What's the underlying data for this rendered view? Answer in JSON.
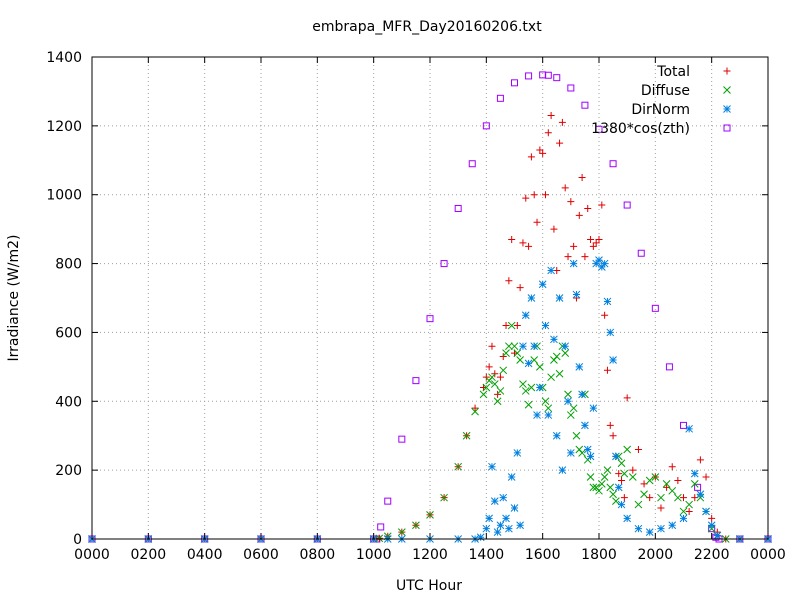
{
  "chart_data": {
    "type": "scatter",
    "title": "embrapa_MFR_Day20160206.txt",
    "xlabel": "UTC Hour",
    "ylabel": "Irradiance (W/m2)",
    "xlim": [
      0,
      24
    ],
    "ylim": [
      0,
      1400
    ],
    "grid": true,
    "legend_position": "top-right",
    "x_ticks": [
      {
        "value": 0,
        "label": "0000"
      },
      {
        "value": 2,
        "label": "0200"
      },
      {
        "value": 4,
        "label": "0400"
      },
      {
        "value": 6,
        "label": "0600"
      },
      {
        "value": 8,
        "label": "0800"
      },
      {
        "value": 10,
        "label": "1000"
      },
      {
        "value": 12,
        "label": "1200"
      },
      {
        "value": 14,
        "label": "1400"
      },
      {
        "value": 16,
        "label": "1600"
      },
      {
        "value": 18,
        "label": "1800"
      },
      {
        "value": 20,
        "label": "2000"
      },
      {
        "value": 22,
        "label": "2200"
      },
      {
        "value": 24,
        "label": "0000"
      }
    ],
    "y_ticks": [
      0,
      200,
      400,
      600,
      800,
      1000,
      1200,
      1400
    ],
    "series": [
      {
        "name": "Total",
        "marker": "plus",
        "color": "#e00000",
        "x": [
          0,
          2,
          4,
          6,
          8,
          10,
          10.2,
          10.5,
          11,
          11.5,
          12,
          12.5,
          13,
          13.3,
          13.6,
          13.9,
          14.0,
          14.1,
          14.2,
          14.3,
          14.4,
          14.5,
          14.6,
          14.7,
          14.8,
          14.9,
          15.0,
          15.1,
          15.2,
          15.3,
          15.4,
          15.5,
          15.6,
          15.7,
          15.8,
          15.9,
          16.0,
          16.1,
          16.2,
          16.3,
          16.4,
          16.5,
          16.6,
          16.7,
          16.8,
          16.9,
          17.0,
          17.1,
          17.2,
          17.3,
          17.4,
          17.5,
          17.6,
          17.7,
          17.8,
          17.9,
          18.0,
          18.1,
          18.2,
          18.3,
          18.4,
          18.5,
          18.6,
          18.7,
          18.8,
          18.9,
          19.0,
          19.2,
          19.4,
          19.6,
          19.8,
          20.0,
          20.2,
          20.4,
          20.6,
          20.8,
          21.0,
          21.2,
          21.4,
          21.6,
          21.8,
          22.0,
          22.2,
          22.5,
          23,
          24
        ],
        "y": [
          0,
          0,
          0,
          0,
          0,
          0,
          2,
          8,
          20,
          40,
          70,
          120,
          210,
          300,
          380,
          440,
          470,
          500,
          560,
          480,
          420,
          470,
          530,
          620,
          750,
          870,
          540,
          620,
          730,
          860,
          990,
          850,
          1110,
          1000,
          920,
          1130,
          1120,
          1000,
          1180,
          1230,
          900,
          780,
          1150,
          1210,
          1020,
          820,
          980,
          850,
          700,
          940,
          1050,
          820,
          960,
          870,
          850,
          860,
          870,
          970,
          650,
          490,
          330,
          300,
          240,
          190,
          170,
          120,
          410,
          200,
          260,
          160,
          120,
          180,
          90,
          150,
          210,
          170,
          120,
          80,
          120,
          230,
          180,
          60,
          20,
          0,
          0,
          0
        ]
      },
      {
        "name": "Diffuse",
        "marker": "cross",
        "color": "#00a000",
        "x": [
          0,
          2,
          4,
          6,
          8,
          10,
          10.2,
          10.5,
          11,
          11.5,
          12,
          12.5,
          13,
          13.3,
          13.6,
          13.9,
          14.0,
          14.1,
          14.2,
          14.3,
          14.4,
          14.5,
          14.6,
          14.7,
          14.8,
          14.9,
          15.0,
          15.1,
          15.2,
          15.3,
          15.4,
          15.5,
          15.6,
          15.7,
          15.8,
          15.9,
          16.0,
          16.1,
          16.2,
          16.3,
          16.4,
          16.5,
          16.6,
          16.7,
          16.8,
          16.9,
          17.0,
          17.1,
          17.2,
          17.3,
          17.4,
          17.5,
          17.6,
          17.7,
          17.8,
          17.9,
          18.0,
          18.1,
          18.2,
          18.3,
          18.4,
          18.5,
          18.6,
          18.7,
          18.8,
          18.9,
          19.0,
          19.2,
          19.4,
          19.6,
          19.8,
          20.0,
          20.2,
          20.4,
          20.6,
          20.8,
          21.0,
          21.2,
          21.4,
          21.6,
          21.8,
          22.0,
          22.2,
          22.5,
          23,
          24
        ],
        "y": [
          0,
          0,
          0,
          0,
          0,
          0,
          2,
          8,
          20,
          40,
          70,
          120,
          210,
          300,
          370,
          420,
          440,
          460,
          470,
          450,
          400,
          430,
          490,
          540,
          560,
          620,
          560,
          540,
          520,
          450,
          430,
          390,
          440,
          520,
          560,
          500,
          440,
          400,
          380,
          470,
          520,
          530,
          480,
          560,
          540,
          420,
          360,
          380,
          300,
          260,
          250,
          420,
          230,
          180,
          150,
          150,
          140,
          160,
          180,
          200,
          150,
          130,
          110,
          240,
          220,
          190,
          260,
          180,
          100,
          130,
          170,
          180,
          120,
          160,
          140,
          120,
          80,
          100,
          160,
          120,
          80,
          30,
          10,
          0,
          0,
          0
        ]
      },
      {
        "name": "DirNorm",
        "marker": "star",
        "color": "#0080e0",
        "x": [
          0,
          2,
          4,
          6,
          8,
          10,
          10.5,
          11,
          12,
          13,
          13.6,
          13.8,
          14.0,
          14.1,
          14.2,
          14.3,
          14.4,
          14.5,
          14.6,
          14.7,
          14.8,
          14.9,
          15.0,
          15.1,
          15.2,
          15.3,
          15.4,
          15.5,
          15.6,
          15.7,
          15.8,
          15.9,
          16.0,
          16.1,
          16.2,
          16.3,
          16.4,
          16.5,
          16.6,
          16.7,
          16.8,
          16.9,
          17.0,
          17.1,
          17.2,
          17.3,
          17.4,
          17.5,
          17.6,
          17.7,
          17.8,
          17.9,
          18.0,
          18.1,
          18.2,
          18.3,
          18.4,
          18.5,
          18.6,
          18.7,
          18.8,
          19.0,
          19.4,
          19.8,
          20.2,
          20.6,
          21.0,
          21.2,
          21.4,
          21.6,
          21.8,
          22.0,
          22.2,
          23,
          24
        ],
        "y": [
          0,
          0,
          0,
          0,
          0,
          0,
          0,
          0,
          0,
          0,
          0,
          5,
          30,
          60,
          210,
          110,
          20,
          40,
          120,
          60,
          30,
          180,
          90,
          250,
          40,
          560,
          650,
          510,
          700,
          560,
          360,
          440,
          740,
          620,
          360,
          780,
          580,
          300,
          700,
          200,
          560,
          400,
          250,
          800,
          710,
          500,
          420,
          330,
          260,
          240,
          380,
          800,
          810,
          790,
          800,
          690,
          600,
          520,
          240,
          150,
          100,
          60,
          30,
          20,
          30,
          40,
          60,
          320,
          190,
          130,
          80,
          40,
          10,
          0,
          0
        ]
      },
      {
        "name": "1380*cos(zth)",
        "marker": "square",
        "color": "#a000ff",
        "x": [
          0,
          2,
          4,
          6,
          8,
          10,
          10.11,
          10.25,
          10.5,
          11,
          11.5,
          12,
          12.5,
          13,
          13.5,
          14,
          14.5,
          15,
          15.5,
          16,
          16.2,
          16.5,
          17,
          17.5,
          18,
          18.5,
          19,
          19.5,
          20,
          20.5,
          21,
          21.5,
          22,
          22.15,
          22.26,
          23,
          24
        ],
        "y": [
          0,
          0,
          0,
          0,
          0,
          0,
          0,
          35,
          110,
          290,
          460,
          640,
          800,
          960,
          1090,
          1200,
          1280,
          1325,
          1345,
          1348,
          1347,
          1340,
          1310,
          1260,
          1190,
          1090,
          970,
          830,
          670,
          500,
          330,
          150,
          30,
          5,
          0,
          0,
          0
        ]
      }
    ]
  }
}
